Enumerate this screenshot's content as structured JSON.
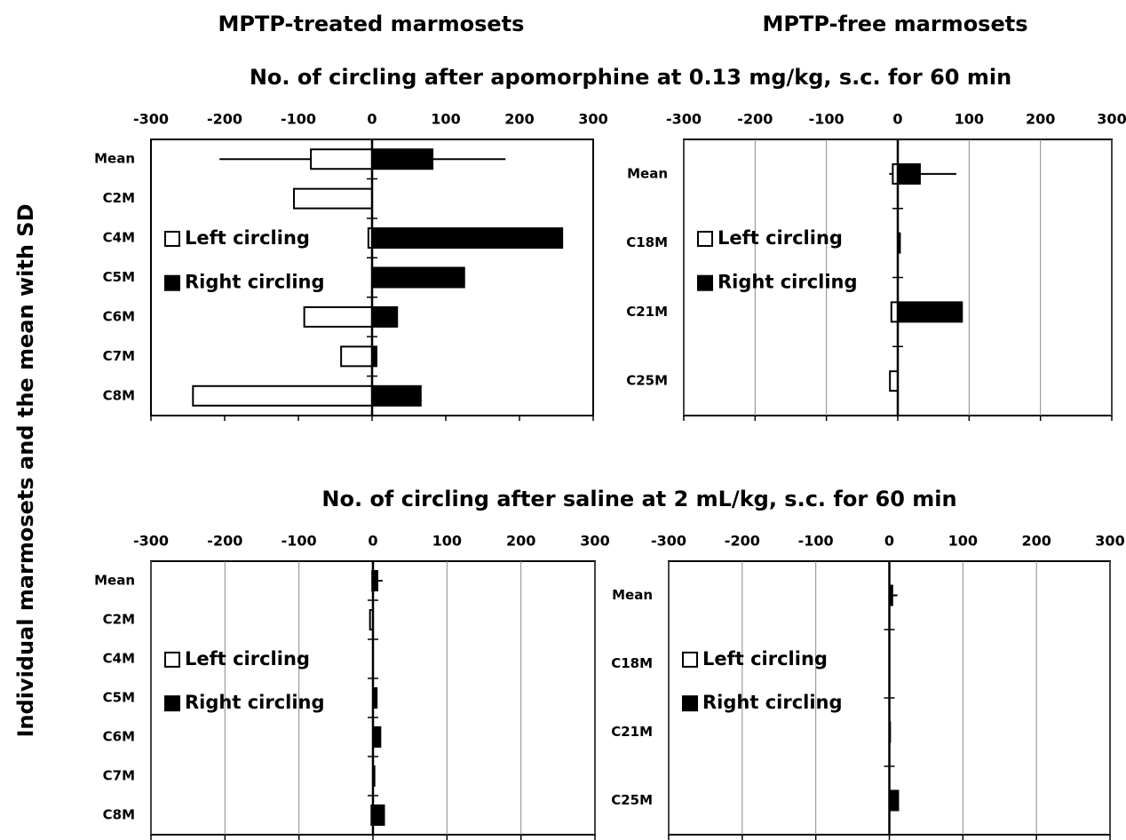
{
  "figure": {
    "columns": [
      "MPTP-treated marmosets",
      "MPTP-free marmosets"
    ],
    "row_titles": [
      "No. of circling after apomorphine at 0.13 mg/kg, s.c. for 60 min",
      "No. of circling after saline at 2 mL/kg, s.c. for 60 min"
    ],
    "ylabel": "Individual marmosets and the mean with SD"
  },
  "chart_data": [
    {
      "type": "bar",
      "orientation": "horizontal",
      "categories": [
        "Mean",
        "C2M",
        "C4M",
        "C5M",
        "C6M",
        "C7M",
        "C8M"
      ],
      "series": [
        {
          "name": "Left circling",
          "color": "#ffffff",
          "values": [
            -83,
            -106,
            -5,
            0,
            -92,
            -42,
            -243
          ],
          "errors": [
            124,
            null,
            null,
            null,
            null,
            null,
            null
          ]
        },
        {
          "name": "Right circling",
          "color": "#000000",
          "values": [
            82,
            0,
            258,
            125,
            34,
            6,
            66
          ],
          "errors": [
            99,
            null,
            null,
            null,
            null,
            null,
            null
          ]
        }
      ],
      "xlim": [
        -300,
        300
      ],
      "xticks": [
        -300,
        -200,
        -100,
        0,
        100,
        200,
        300
      ],
      "grid": false,
      "legend": "left"
    },
    {
      "type": "bar",
      "orientation": "horizontal",
      "categories": [
        "Mean",
        "C18M",
        "C21M",
        "C25M"
      ],
      "series": [
        {
          "name": "Left circling",
          "color": "#ffffff",
          "values": [
            -7,
            0,
            -9,
            -11
          ],
          "errors": [
            5,
            null,
            null,
            null
          ]
        },
        {
          "name": "Right circling",
          "color": "#000000",
          "values": [
            31,
            3,
            90,
            0
          ],
          "errors": [
            51,
            null,
            null,
            null
          ]
        }
      ],
      "xlim": [
        -300,
        300
      ],
      "xticks": [
        -300,
        -200,
        -100,
        0,
        100,
        200,
        300
      ],
      "grid": true,
      "legend": "left"
    },
    {
      "type": "bar",
      "orientation": "horizontal",
      "categories": [
        "Mean",
        "C2M",
        "C4M",
        "C5M",
        "C6M",
        "C7M",
        "C8M"
      ],
      "series": [
        {
          "name": "Left circling",
          "color": "#ffffff",
          "values": [
            -1,
            -4,
            0,
            0,
            0,
            0,
            -2
          ],
          "errors": [
            1,
            null,
            null,
            null,
            null,
            null,
            null
          ]
        },
        {
          "name": "Right circling",
          "color": "#000000",
          "values": [
            6,
            0,
            0,
            5,
            10,
            2,
            15
          ],
          "errors": [
            7,
            null,
            null,
            null,
            null,
            null,
            null
          ]
        }
      ],
      "xlim": [
        -300,
        300
      ],
      "xticks": [
        -300,
        -200,
        -100,
        0,
        100,
        200,
        300
      ],
      "grid": true,
      "legend": "left"
    },
    {
      "type": "bar",
      "orientation": "horizontal",
      "categories": [
        "Mean",
        "C18M",
        "C21M",
        "C25M"
      ],
      "series": [
        {
          "name": "Left circling",
          "color": "#ffffff",
          "values": [
            0,
            0,
            0,
            0
          ],
          "errors": [
            null,
            null,
            null,
            null
          ]
        },
        {
          "name": "Right circling",
          "color": "#000000",
          "values": [
            4,
            0,
            1,
            12
          ],
          "errors": [
            7,
            null,
            null,
            null
          ]
        }
      ],
      "xlim": [
        -300,
        300
      ],
      "xticks": [
        -300,
        -200,
        -100,
        0,
        100,
        200,
        300
      ],
      "grid": true,
      "legend": "left"
    }
  ]
}
